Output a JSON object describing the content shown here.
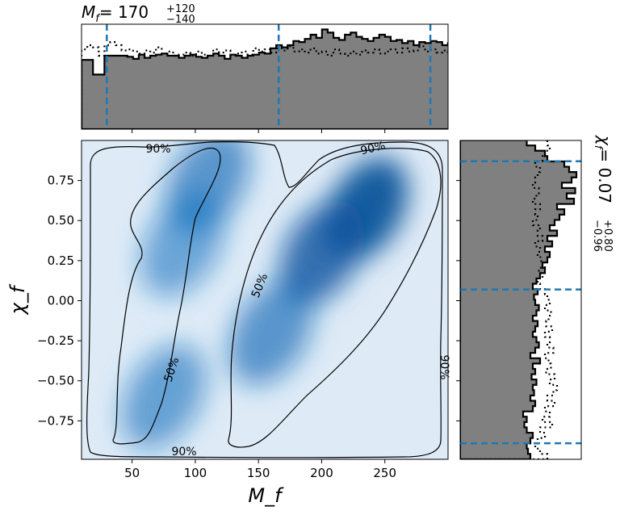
{
  "chart_data": [
    {
      "type": "heatmap",
      "panel": "joint",
      "xlabel": "M_f",
      "ylabel": "χ_f",
      "xlim": [
        10,
        300
      ],
      "ylim": [
        -0.99,
        1.0
      ],
      "xticks": [
        50,
        100,
        150,
        200,
        250
      ],
      "yticks": [
        -0.75,
        -0.5,
        -0.25,
        0.0,
        0.25,
        0.5,
        0.75
      ],
      "xtick_labels": [
        "50",
        "100",
        "150",
        "200",
        "250"
      ],
      "ytick_labels": [
        "−0.75",
        "−0.50",
        "−0.25",
        "0.00",
        "0.25",
        "0.50",
        "0.75"
      ],
      "colormap": "Blues",
      "density_modes": [
        {
          "x": 235,
          "y": 0.57,
          "weight": 1.0
        },
        {
          "x": 200,
          "y": 0.3,
          "weight": 0.85
        },
        {
          "x": 160,
          "y": -0.2,
          "weight": 0.55
        },
        {
          "x": 110,
          "y": 0.75,
          "weight": 0.55
        },
        {
          "x": 90,
          "y": 0.35,
          "weight": 0.4
        },
        {
          "x": 75,
          "y": -0.6,
          "weight": 0.45
        }
      ],
      "contours": [
        {
          "level": "50%",
          "label": "50%"
        },
        {
          "level": "50%",
          "label": "50%"
        },
        {
          "level": "90%",
          "label": "90%"
        },
        {
          "level": "90%",
          "label": "90%"
        },
        {
          "level": "90%",
          "label": "90%"
        },
        {
          "level": "90%",
          "label": "90%"
        }
      ]
    },
    {
      "type": "histogram",
      "panel": "top-marginal",
      "title_base": "M",
      "title_sub": "f",
      "title_value": "= 170",
      "title_plus": "+120",
      "title_minus": "−140",
      "xlim": [
        10,
        300
      ],
      "bin_edges_start": 10,
      "bin_width": 4.53,
      "solid_heights": [
        0.66,
        0.66,
        0.52,
        0.52,
        0.7,
        0.7,
        0.7,
        0.7,
        0.69,
        0.67,
        0.71,
        0.68,
        0.7,
        0.71,
        0.72,
        0.7,
        0.7,
        0.68,
        0.7,
        0.71,
        0.69,
        0.68,
        0.7,
        0.72,
        0.7,
        0.67,
        0.71,
        0.7,
        0.68,
        0.7,
        0.71,
        0.73,
        0.72,
        0.77,
        0.8,
        0.78,
        0.8,
        0.84,
        0.83,
        0.86,
        0.9,
        0.87,
        0.95,
        0.92,
        0.87,
        0.85,
        0.9,
        0.92,
        0.88,
        0.86,
        0.84,
        0.87,
        0.9,
        0.88,
        0.84,
        0.85,
        0.82,
        0.84,
        0.8,
        0.83,
        0.82,
        0.84,
        0.83,
        0.8,
        0.82,
        0.79,
        0.78,
        0.76
      ],
      "dotted_heights": [
        0.76,
        0.8,
        0.78,
        0.7,
        0.8,
        0.83,
        0.8,
        0.75,
        0.76,
        0.74,
        0.72,
        0.75,
        0.73,
        0.78,
        0.72,
        0.74,
        0.7,
        0.71,
        0.73,
        0.7,
        0.74,
        0.71,
        0.7,
        0.76,
        0.73,
        0.75,
        0.7,
        0.72,
        0.74,
        0.71,
        0.77,
        0.74,
        0.76,
        0.73,
        0.77,
        0.75,
        0.79,
        0.74,
        0.76,
        0.73,
        0.77,
        0.72,
        0.74,
        0.7,
        0.76,
        0.72,
        0.7,
        0.74,
        0.71,
        0.75,
        0.73,
        0.76,
        0.72,
        0.74,
        0.76,
        0.73,
        0.77,
        0.74,
        0.75,
        0.79,
        0.74,
        0.76,
        0.73,
        0.75,
        0.72,
        0.76,
        0.73,
        0.72
      ],
      "quantile_lines": [
        30,
        166,
        286
      ]
    },
    {
      "type": "histogram",
      "panel": "right-marginal",
      "orientation": "horizontal",
      "label_base": "χ",
      "label_sub": "f",
      "label_value": "= 0.07",
      "label_plus": "+0.80",
      "label_minus": "−0.96",
      "ylim": [
        -0.99,
        1.0
      ],
      "bin_edges_start": -0.99,
      "bin_width": 0.0332,
      "solid_heights": [
        0.58,
        0.56,
        0.55,
        0.58,
        0.6,
        0.55,
        0.53,
        0.55,
        0.52,
        0.6,
        0.62,
        0.58,
        0.61,
        0.6,
        0.63,
        0.59,
        0.62,
        0.6,
        0.66,
        0.58,
        0.62,
        0.65,
        0.63,
        0.6,
        0.62,
        0.64,
        0.6,
        0.63,
        0.65,
        0.62,
        0.61,
        0.64,
        0.6,
        0.63,
        0.66,
        0.7,
        0.68,
        0.72,
        0.74,
        0.7,
        0.76,
        0.72,
        0.8,
        0.74,
        0.78,
        0.82,
        0.86,
        0.8,
        0.94,
        0.88,
        0.95,
        0.84,
        0.92,
        0.96,
        0.9,
        0.86,
        0.72,
        0.7,
        0.62,
        0.55
      ],
      "dotted_heights": [
        0.72,
        0.66,
        0.62,
        0.64,
        0.7,
        0.66,
        0.76,
        0.68,
        0.74,
        0.7,
        0.78,
        0.72,
        0.77,
        0.8,
        0.74,
        0.78,
        0.71,
        0.75,
        0.73,
        0.7,
        0.77,
        0.72,
        0.74,
        0.7,
        0.76,
        0.71,
        0.73,
        0.75,
        0.7,
        0.74,
        0.72,
        0.7,
        0.66,
        0.64,
        0.68,
        0.65,
        0.7,
        0.67,
        0.64,
        0.66,
        0.62,
        0.68,
        0.64,
        0.66,
        0.6,
        0.64,
        0.62,
        0.66,
        0.6,
        0.63,
        0.65,
        0.6,
        0.62,
        0.64,
        0.66,
        0.62,
        0.68,
        0.7,
        0.74,
        0.72
      ],
      "quantile_lines": [
        -0.89,
        0.07,
        0.87
      ]
    }
  ]
}
